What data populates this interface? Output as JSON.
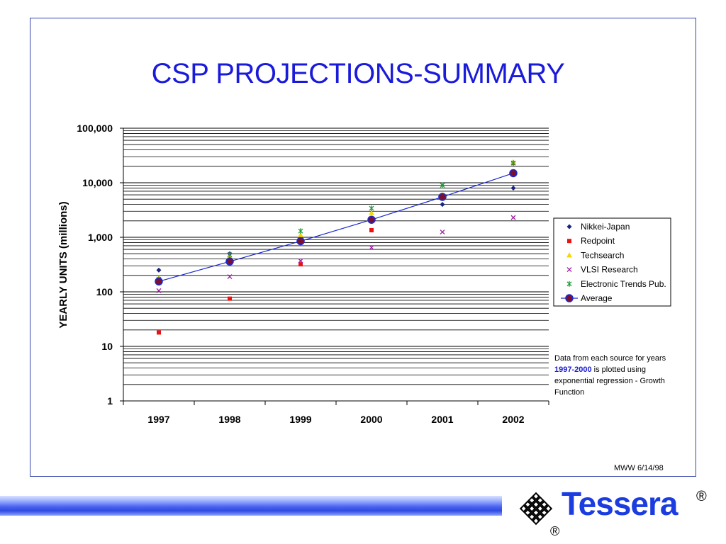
{
  "slide": {
    "title": "CSP PROJECTIONS-SUMMARY",
    "footer_note": "MWW 6/14/98",
    "note_before": "Data from each source for years ",
    "note_highlight": "1997-2000",
    "note_after": " is plotted using exponential regression - Growth Function",
    "logo_text": "Tessera",
    "reg_symbol": "®"
  },
  "chart_data": {
    "type": "scatter",
    "ylabel": "YEARLY UNITS (millions)",
    "xlabel": "",
    "y_scale": "log",
    "ylim": [
      1,
      100000
    ],
    "y_ticks": [
      1,
      10,
      100,
      1000,
      10000,
      100000
    ],
    "y_tick_labels": [
      "1",
      "10",
      "100",
      "1,000",
      "10,000",
      "100,000"
    ],
    "categories": [
      "1997",
      "1998",
      "1999",
      "2000",
      "2001",
      "2002"
    ],
    "grid": true,
    "legend_position": "right",
    "series": [
      {
        "name": "Nikkei-Japan",
        "marker": "diamond",
        "color": "#1a237e",
        "values": [
          250,
          500,
          900,
          2000,
          4000,
          8000
        ]
      },
      {
        "name": "Redpoint",
        "marker": "square",
        "color": "#ee1111",
        "values": [
          18,
          75,
          320,
          1350,
          5500,
          23000
        ]
      },
      {
        "name": "Techsearch",
        "marker": "triangle",
        "color": "#f5d800",
        "values": [
          180,
          450,
          1100,
          2800,
          6000,
          24000
        ]
      },
      {
        "name": "VLSI Research",
        "marker": "x",
        "color": "#9b1fa0",
        "values": [
          105,
          190,
          370,
          650,
          1250,
          2300
        ]
      },
      {
        "name": "Electronic Trends Pub.",
        "marker": "star",
        "color": "#1f9a3a",
        "values": [
          170,
          480,
          1300,
          3400,
          9000,
          23000
        ]
      },
      {
        "name": "Average",
        "marker": "circle-line",
        "color": "#7a1030",
        "line_color": "#1a2ad0",
        "values": [
          155,
          360,
          850,
          2100,
          5500,
          15000
        ]
      }
    ]
  }
}
